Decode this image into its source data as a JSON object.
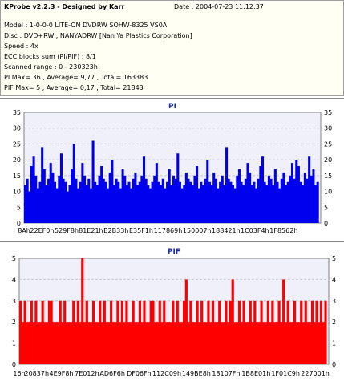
{
  "header": {
    "title": "KProbe v2.2.3 - Designed by Karr",
    "date": "Date : 2004-07-23 11:12:37",
    "model": "Model : 1-0-0-0 LITE-ON DVDRW SOHW-8325  VS0A",
    "disc": "Disc : DVD+RW , NANYADRW [Nan Ya Plastics Corporation]",
    "speed": "Speed : 4x",
    "ecc": "ECC blocks sum (PI/PIF) : 8/1",
    "range": "Scanned range : 0 - 230323h",
    "pi_stats": "PI Max= 36 , Average= 9,77 , Total= 163383",
    "pif_stats": "PIF Max= 5 , Average= 0,17 , Total= 21843"
  },
  "colors": {
    "pi": "#0000ee",
    "pif": "#ff0000",
    "pi_title": "#1a2f9c",
    "pif_title": "#1a2f9c",
    "plot_bg": "#f0f0fa"
  },
  "chart_data": [
    {
      "type": "area",
      "title": "PI",
      "ylim": [
        0,
        35
      ],
      "yticks": [
        0,
        5,
        10,
        15,
        20,
        25,
        30,
        35
      ],
      "xlim": [
        0,
        2360355
      ],
      "x_tick_labels": [
        "8Ah",
        "22EF0h",
        "529F8h",
        "81E21h",
        "B2B33h",
        "E35F1h",
        "117869h",
        "150007h",
        "188421h",
        "1C03F4h",
        "1F8562h"
      ],
      "x_tick_values": [
        138,
        143088,
        338424,
        531969,
        731955,
        931313,
        1145001,
        1376263,
        1606689,
        1836020,
        2065762
      ],
      "summary": {
        "max": 36,
        "average": 9.77,
        "total": 163383
      },
      "x_step": 16858,
      "values": [
        12,
        14,
        10,
        18,
        21,
        15,
        11,
        13,
        24,
        17,
        12,
        14,
        19,
        16,
        13,
        11,
        15,
        22,
        14,
        13,
        10,
        12,
        17,
        25,
        14,
        11,
        13,
        19,
        15,
        12,
        14,
        11,
        26,
        13,
        12,
        15,
        18,
        14,
        13,
        11,
        16,
        20,
        12,
        14,
        13,
        11,
        17,
        15,
        12,
        13,
        11,
        14,
        16,
        12,
        13,
        15,
        21,
        14,
        12,
        11,
        13,
        15,
        19,
        13,
        12,
        14,
        11,
        13,
        17,
        12,
        15,
        14,
        22,
        13,
        11,
        12,
        16,
        14,
        13,
        12,
        15,
        18,
        11,
        13,
        12,
        14,
        20,
        13,
        12,
        16,
        14,
        11,
        13,
        15,
        12,
        24,
        14,
        13,
        12,
        11,
        15,
        17,
        13,
        12,
        14,
        19,
        16,
        12,
        13,
        11,
        14,
        18,
        21,
        13,
        12,
        15,
        14,
        12,
        17,
        13,
        11,
        14,
        16,
        12,
        13,
        15,
        19,
        14,
        20,
        18,
        13,
        12,
        16,
        14,
        21,
        15,
        17,
        12,
        13
      ]
    },
    {
      "type": "area",
      "title": "PIF",
      "ylim": [
        0,
        5
      ],
      "yticks": [
        0,
        1,
        2,
        3,
        4,
        5
      ],
      "xlim": [
        0,
        2360355
      ],
      "x_tick_labels": [
        "16h",
        "20837h",
        "4E9F8h",
        "7E012h",
        "AD6F6h",
        "DF06Fh",
        "112C09h",
        "149BE8h",
        "18107Fh",
        "1B8E01h",
        "1F01C9h",
        "227001h"
      ],
      "x_tick_values": [
        22,
        133175,
        321016,
        516114,
        710390,
        913519,
        1125385,
        1350632,
        1577087,
        1805825,
        2031049,
        2256897
      ],
      "summary": {
        "max": 5,
        "average": 0.17,
        "total": 21843
      },
      "x_step": 16858,
      "values": [
        3,
        2,
        3,
        2,
        2,
        3,
        2,
        3,
        2,
        2,
        3,
        2,
        2,
        3,
        3,
        2,
        2,
        2,
        3,
        2,
        3,
        2,
        2,
        2,
        3,
        2,
        3,
        2,
        5,
        2,
        3,
        2,
        2,
        3,
        2,
        2,
        3,
        2,
        3,
        2,
        2,
        3,
        2,
        2,
        3,
        2,
        3,
        2,
        3,
        2,
        2,
        3,
        2,
        2,
        3,
        2,
        3,
        2,
        2,
        3,
        3,
        2,
        2,
        3,
        2,
        3,
        2,
        2,
        2,
        3,
        2,
        3,
        2,
        2,
        3,
        4,
        2,
        3,
        2,
        2,
        3,
        2,
        3,
        2,
        2,
        3,
        2,
        3,
        2,
        2,
        3,
        2,
        2,
        3,
        2,
        3,
        4,
        2,
        2,
        3,
        2,
        3,
        2,
        2,
        3,
        2,
        3,
        2,
        2,
        3,
        2,
        2,
        3,
        2,
        3,
        2,
        2,
        3,
        2,
        4,
        2,
        3,
        2,
        2,
        3,
        2,
        2,
        3,
        2,
        3,
        2,
        2,
        3,
        2,
        3,
        2,
        3,
        2,
        3
      ]
    }
  ]
}
